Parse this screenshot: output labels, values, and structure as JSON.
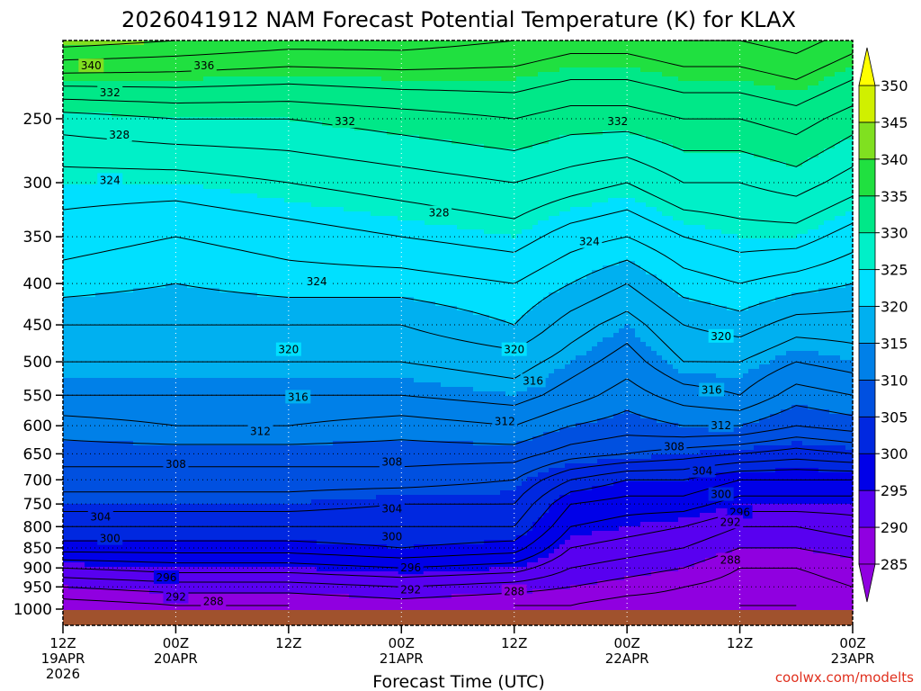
{
  "chart_data": {
    "type": "heatmap",
    "title": "2026041912 NAM Forecast Potential Temperature (K) for KLAX",
    "xlabel": "Forecast Time (UTC)",
    "ylabel": "",
    "y_scale": "log",
    "y_ticks": [
      250,
      300,
      350,
      400,
      450,
      500,
      550,
      600,
      650,
      700,
      750,
      800,
      850,
      900,
      950,
      1000
    ],
    "y_tick_labels": [
      "250",
      "300",
      "350",
      "400",
      "450",
      "500",
      "550",
      "600",
      "650",
      "700",
      "750",
      "800",
      "850",
      "900",
      "950",
      "1000"
    ],
    "ylim": [
      200,
      1020
    ],
    "x_ticks": [
      {
        "hour": 0,
        "line1": "12Z",
        "line2": "19APR",
        "line3": "2026"
      },
      {
        "hour": 12,
        "line1": "00Z",
        "line2": "20APR",
        "line3": ""
      },
      {
        "hour": 24,
        "line1": "12Z",
        "line2": "",
        "line3": ""
      },
      {
        "hour": 36,
        "line1": "00Z",
        "line2": "21APR",
        "line3": ""
      },
      {
        "hour": 48,
        "line1": "12Z",
        "line2": "",
        "line3": ""
      },
      {
        "hour": 60,
        "line1": "00Z",
        "line2": "22APR",
        "line3": ""
      },
      {
        "hour": 72,
        "line1": "12Z",
        "line2": "",
        "line3": ""
      },
      {
        "hour": 84,
        "line1": "00Z",
        "line2": "23APR",
        "line3": ""
      }
    ],
    "xlim": [
      0,
      84
    ],
    "grid": true,
    "colorbar": {
      "placement": "right",
      "levels": [
        285,
        290,
        295,
        300,
        305,
        310,
        315,
        320,
        325,
        330,
        335,
        340,
        345,
        350
      ],
      "tick_labels": [
        "350",
        "345",
        "340",
        "335",
        "330",
        "325",
        "320",
        "315",
        "310",
        "305",
        "300",
        "295",
        "290",
        "285"
      ],
      "colors": [
        "#9000e0",
        "#5800f0",
        "#0000e8",
        "#0028e0",
        "#0050e0",
        "#0080e8",
        "#00b0f0",
        "#00e0ff",
        "#00f0c8",
        "#00e888",
        "#20e040",
        "#80e020",
        "#d0f000",
        "#ffff00"
      ]
    },
    "contour_interval": 2,
    "profiles": [
      {
        "hour": 0,
        "levels_hPa": [
          1000,
          950,
          900,
          850,
          800,
          750,
          700,
          650,
          600,
          550,
          500,
          450,
          400,
          350,
          300,
          250,
          200
        ],
        "theta": [
          287,
          290,
          294,
          299,
          302,
          305,
          307,
          309,
          311,
          314,
          316,
          318,
          321,
          323,
          325,
          329,
          341
        ]
      },
      {
        "hour": 12,
        "levels_hPa": [
          1000,
          950,
          900,
          850,
          800,
          750,
          700,
          650,
          600,
          550,
          500,
          450,
          400,
          350,
          300,
          250,
          200
        ],
        "theta": [
          288,
          291,
          295,
          299,
          302,
          305,
          307,
          309,
          312,
          314,
          316,
          318,
          320,
          322,
          325,
          330,
          340
        ]
      },
      {
        "hour": 24,
        "levels_hPa": [
          1000,
          950,
          900,
          850,
          800,
          750,
          700,
          650,
          600,
          550,
          500,
          450,
          400,
          350,
          300,
          250,
          200
        ],
        "theta": [
          288,
          291,
          295,
          299,
          302,
          305,
          307,
          309,
          312,
          314,
          316,
          318,
          321,
          323,
          326,
          330,
          339
        ]
      },
      {
        "hour": 36,
        "levels_hPa": [
          1000,
          950,
          900,
          850,
          800,
          750,
          700,
          650,
          600,
          550,
          500,
          450,
          400,
          350,
          300,
          250,
          200
        ],
        "theta": [
          289,
          292,
          296,
          300,
          302,
          304,
          307,
          309,
          311,
          314,
          316,
          318,
          321,
          324,
          327,
          331,
          339
        ]
      },
      {
        "hour": 48,
        "levels_hPa": [
          1000,
          950,
          900,
          850,
          800,
          750,
          700,
          650,
          600,
          550,
          500,
          450,
          400,
          350,
          300,
          250,
          200
        ],
        "theta": [
          288,
          291,
          295,
          299,
          302,
          304,
          306,
          309,
          312,
          315,
          317,
          320,
          322,
          325,
          328,
          332,
          338
        ]
      },
      {
        "hour": 54,
        "levels_hPa": [
          1000,
          950,
          900,
          850,
          800,
          750,
          700,
          650,
          600,
          550,
          500,
          450,
          400,
          350,
          300,
          250,
          200
        ],
        "theta": [
          288,
          290,
          292,
          294,
          296,
          298,
          302,
          307,
          310,
          313,
          315,
          317,
          320,
          323,
          327,
          331,
          337
        ]
      },
      {
        "hour": 60,
        "levels_hPa": [
          1000,
          950,
          900,
          850,
          800,
          750,
          700,
          650,
          600,
          550,
          500,
          450,
          400,
          350,
          300,
          250,
          200
        ],
        "theta": [
          287,
          289,
          291,
          293,
          295,
          297,
          300,
          306,
          309,
          311,
          313,
          315,
          318,
          322,
          326,
          331,
          337
        ]
      },
      {
        "hour": 66,
        "levels_hPa": [
          1000,
          950,
          900,
          850,
          800,
          750,
          700,
          650,
          600,
          550,
          500,
          450,
          400,
          350,
          300,
          250,
          200
        ],
        "theta": [
          287,
          288,
          290,
          292,
          294,
          297,
          300,
          305,
          310,
          313,
          316,
          318,
          321,
          324,
          328,
          332,
          338
        ]
      },
      {
        "hour": 72,
        "levels_hPa": [
          1000,
          950,
          900,
          850,
          800,
          750,
          700,
          650,
          600,
          550,
          500,
          450,
          400,
          350,
          300,
          250,
          200
        ],
        "theta": [
          286,
          287,
          288,
          290,
          292,
          295,
          298,
          304,
          310,
          314,
          316,
          319,
          322,
          325,
          328,
          332,
          338
        ]
      },
      {
        "hour": 78,
        "levels_hPa": [
          1000,
          950,
          900,
          850,
          800,
          750,
          700,
          650,
          600,
          550,
          500,
          450,
          400,
          350,
          300,
          250,
          200
        ],
        "theta": [
          286,
          287,
          288,
          290,
          292,
          295,
          298,
          303,
          308,
          311,
          314,
          317,
          321,
          325,
          329,
          333,
          339
        ]
      },
      {
        "hour": 84,
        "levels_hPa": [
          1000,
          950,
          900,
          850,
          800,
          750,
          700,
          650,
          600,
          550,
          500,
          450,
          400,
          350,
          300,
          250,
          200
        ],
        "theta": [
          287,
          288,
          289,
          291,
          293,
          295,
          298,
          304,
          309,
          312,
          315,
          317,
          320,
          323,
          327,
          331,
          337
        ]
      }
    ],
    "contour_labels": [
      {
        "value": "340",
        "hour": 3,
        "p": 215
      },
      {
        "value": "336",
        "hour": 15,
        "p": 215
      },
      {
        "value": "332",
        "hour": 5,
        "p": 232
      },
      {
        "value": "328",
        "hour": 6,
        "p": 262
      },
      {
        "value": "332",
        "hour": 30,
        "p": 252
      },
      {
        "value": "332",
        "hour": 59,
        "p": 252
      },
      {
        "value": "324",
        "hour": 5,
        "p": 298
      },
      {
        "value": "328",
        "hour": 40,
        "p": 327
      },
      {
        "value": "324",
        "hour": 56,
        "p": 355
      },
      {
        "value": "324",
        "hour": 27,
        "p": 398
      },
      {
        "value": "320",
        "hour": 24,
        "p": 483
      },
      {
        "value": "320",
        "hour": 48,
        "p": 483
      },
      {
        "value": "320",
        "hour": 70,
        "p": 465
      },
      {
        "value": "316",
        "hour": 25,
        "p": 553
      },
      {
        "value": "316",
        "hour": 50,
        "p": 528
      },
      {
        "value": "316",
        "hour": 69,
        "p": 542
      },
      {
        "value": "312",
        "hour": 21,
        "p": 610
      },
      {
        "value": "312",
        "hour": 47,
        "p": 593
      },
      {
        "value": "312",
        "hour": 70,
        "p": 600
      },
      {
        "value": "308",
        "hour": 12,
        "p": 670
      },
      {
        "value": "308",
        "hour": 35,
        "p": 665
      },
      {
        "value": "308",
        "hour": 65,
        "p": 637
      },
      {
        "value": "304",
        "hour": 68,
        "p": 683
      },
      {
        "value": "304",
        "hour": 4,
        "p": 778
      },
      {
        "value": "304",
        "hour": 35,
        "p": 760
      },
      {
        "value": "300",
        "hour": 70,
        "p": 730
      },
      {
        "value": "296",
        "hour": 72,
        "p": 768
      },
      {
        "value": "292",
        "hour": 71,
        "p": 790
      },
      {
        "value": "300",
        "hour": 5,
        "p": 828
      },
      {
        "value": "300",
        "hour": 35,
        "p": 823
      },
      {
        "value": "296",
        "hour": 11,
        "p": 925
      },
      {
        "value": "296",
        "hour": 37,
        "p": 900
      },
      {
        "value": "292",
        "hour": 12,
        "p": 978
      },
      {
        "value": "292",
        "hour": 37,
        "p": 958
      },
      {
        "value": "288",
        "hour": 16,
        "p": 990
      },
      {
        "value": "288",
        "hour": 48,
        "p": 963
      },
      {
        "value": "288",
        "hour": 71,
        "p": 880
      }
    ]
  },
  "credit": "coolwx.com/modelts"
}
